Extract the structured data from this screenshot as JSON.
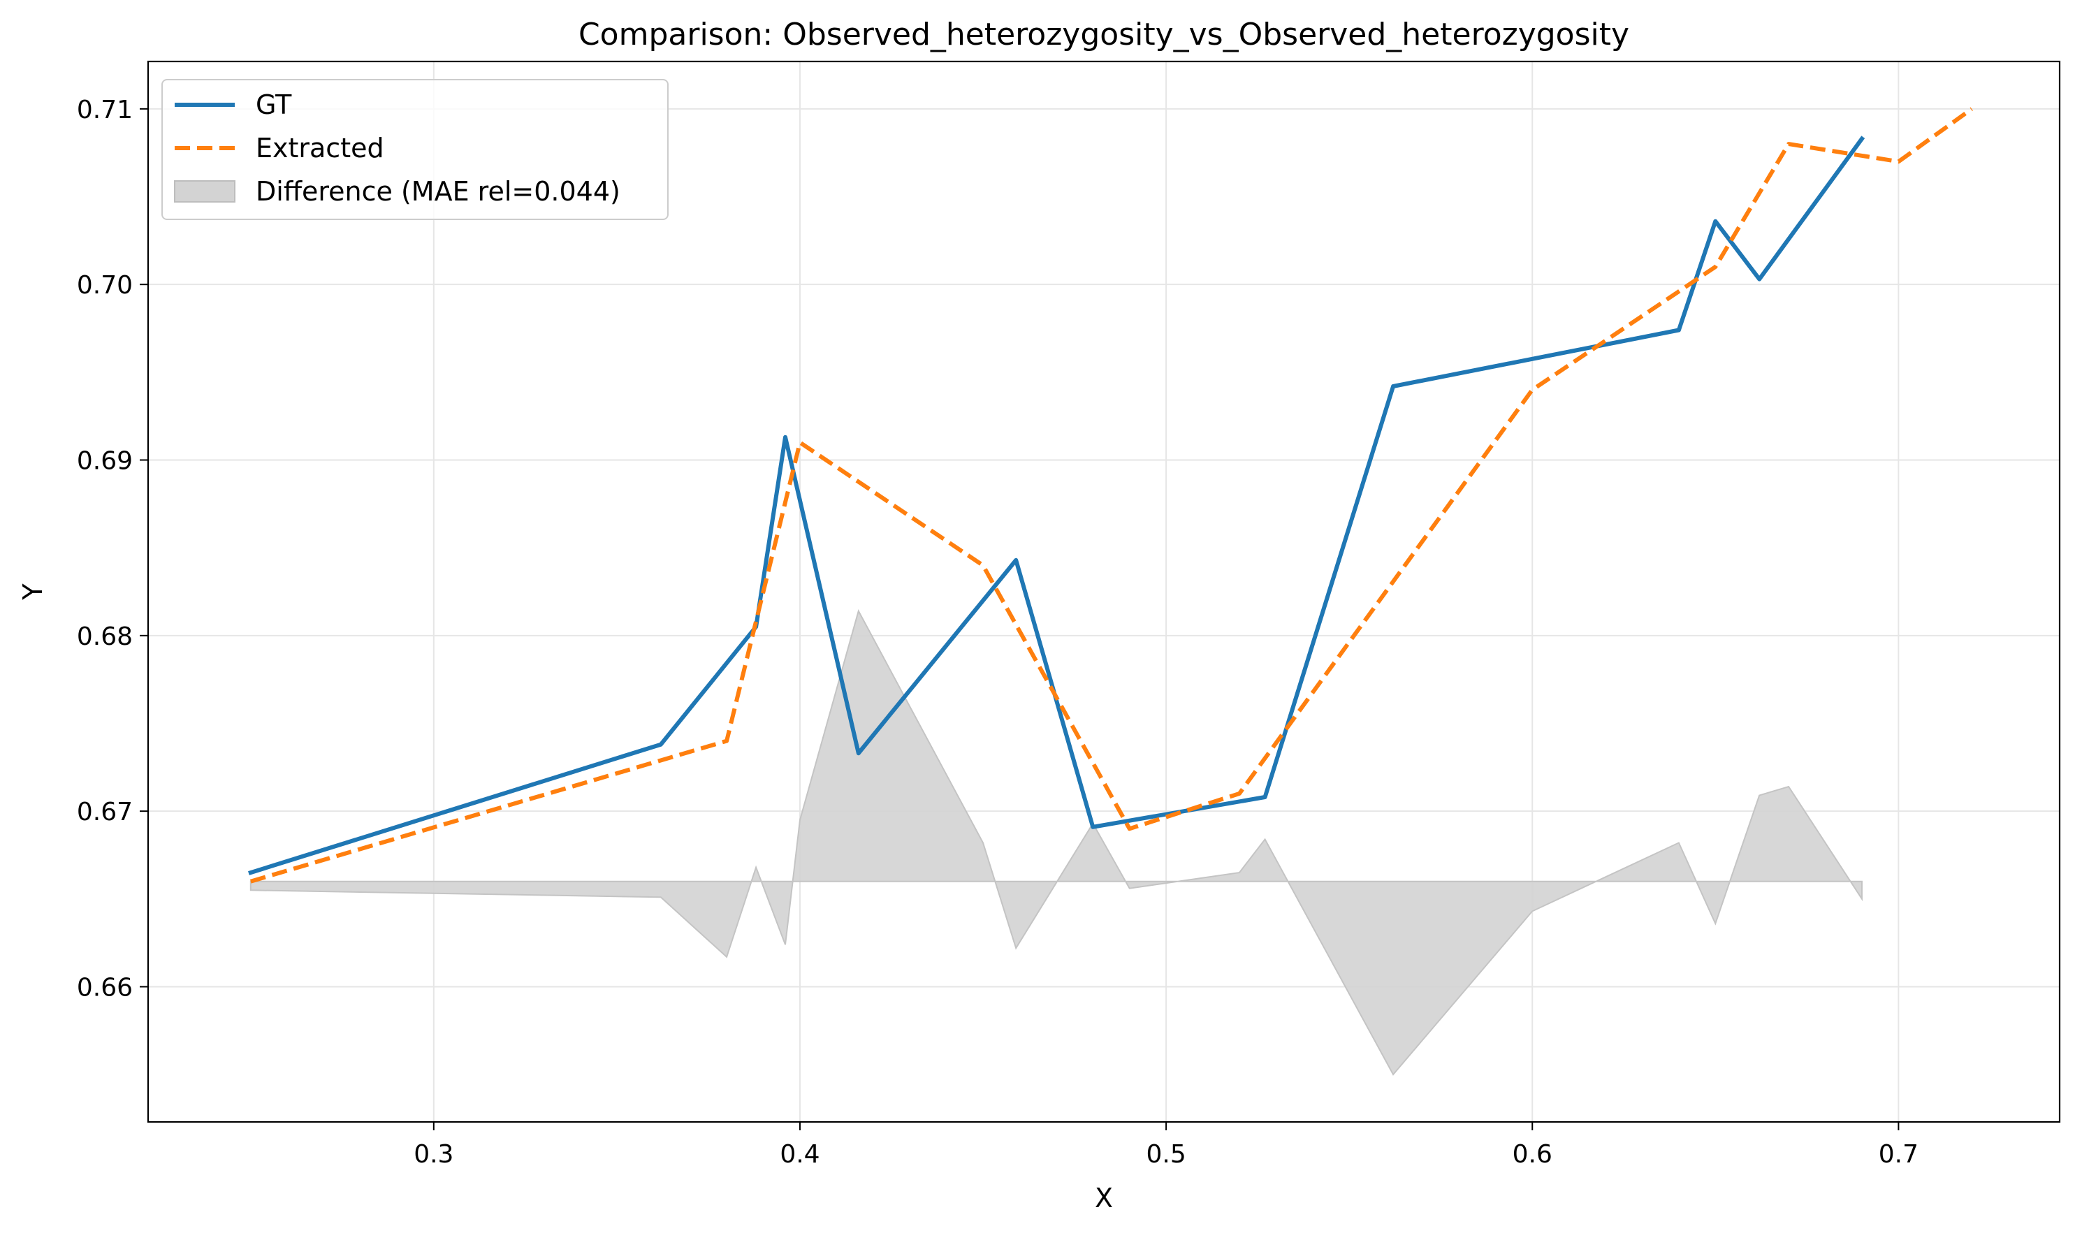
{
  "chart_data": {
    "type": "line",
    "title": "Comparison: Observed_heterozygosity_vs_Observed_heterozygosity",
    "xlabel": "X",
    "ylabel": "Y",
    "xlim": [
      0.222,
      0.744
    ],
    "ylim": [
      0.6523,
      0.7127
    ],
    "xticks": [
      0.3,
      0.4,
      0.5,
      0.6,
      0.7
    ],
    "xtick_labels": [
      "0.3",
      "0.4",
      "0.5",
      "0.6",
      "0.7"
    ],
    "yticks": [
      0.66,
      0.67,
      0.68,
      0.69,
      0.7,
      0.71
    ],
    "ytick_labels": [
      "0.66",
      "0.67",
      "0.68",
      "0.69",
      "0.70",
      "0.71"
    ],
    "grid": true,
    "legend_position": "top-left",
    "series": [
      {
        "name": "GT",
        "style": "solid",
        "color": "#1f77b4",
        "x": [
          0.25,
          0.362,
          0.388,
          0.396,
          0.416,
          0.459,
          0.48,
          0.527,
          0.562,
          0.64,
          0.65,
          0.662,
          0.69
        ],
        "y": [
          0.6665,
          0.6738,
          0.6805,
          0.6913,
          0.6733,
          0.6843,
          0.6691,
          0.6708,
          0.6942,
          0.6974,
          0.7036,
          0.7003,
          0.7083
        ]
      },
      {
        "name": "Extracted",
        "style": "dashed",
        "color": "#ff7f0e",
        "x": [
          0.25,
          0.38,
          0.4,
          0.45,
          0.49,
          0.52,
          0.6,
          0.65,
          0.67,
          0.7,
          0.72
        ],
        "y": [
          0.666,
          0.674,
          0.691,
          0.684,
          0.669,
          0.671,
          0.694,
          0.701,
          0.708,
          0.707,
          0.71
        ]
      }
    ],
    "difference_band": {
      "name": "Difference (MAE rel=0.044)",
      "color": "#d3d3d3",
      "baseline": 0.666,
      "x": [
        0.25,
        0.362,
        0.38,
        0.388,
        0.396,
        0.4,
        0.416,
        0.45,
        0.459,
        0.48,
        0.49,
        0.52,
        0.527,
        0.562,
        0.6,
        0.64,
        0.65,
        0.662,
        0.67,
        0.69
      ],
      "y": [
        0.6655,
        0.6651,
        0.6617,
        0.6668,
        0.6624,
        0.6695,
        0.6814,
        0.6682,
        0.6622,
        0.6693,
        0.6656,
        0.6665,
        0.6684,
        0.655,
        0.6643,
        0.6682,
        0.6636,
        0.6709,
        0.6714,
        0.665
      ]
    }
  }
}
